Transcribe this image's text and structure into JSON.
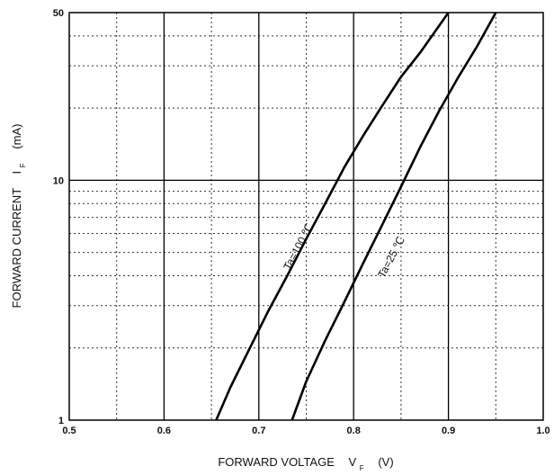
{
  "chart_data": {
    "type": "line",
    "x_scale": "linear",
    "y_scale": "log",
    "xlim": [
      0.5,
      1.0
    ],
    "ylim": [
      1,
      50
    ],
    "x_ticks": [
      0.5,
      0.6,
      0.7,
      0.8,
      0.9,
      1.0
    ],
    "x_tick_labels": [
      "0.5",
      "0.6",
      "0.7",
      "0.8",
      "0.9",
      "1.0"
    ],
    "y_ticks": [
      1,
      10,
      50
    ],
    "y_tick_labels": [
      "1",
      "10",
      "50"
    ],
    "xlabel": {
      "main": "FORWARD VOLTAGE",
      "symbol": "V",
      "subscript": "F",
      "unit": "(V)"
    },
    "ylabel": {
      "main": "FORWARD CURRENT",
      "symbol": "I",
      "subscript": "F",
      "unit": "(mA)"
    },
    "grid": {
      "major": true,
      "minor": true,
      "minor_style": "dotted"
    },
    "series": [
      {
        "name": "Ta=100 ℃",
        "x": [
          0.655,
          0.67,
          0.69,
          0.71,
          0.73,
          0.75,
          0.77,
          0.79,
          0.81,
          0.83,
          0.85,
          0.87,
          0.9
        ],
        "y": [
          1.0,
          1.37,
          1.98,
          2.85,
          4.0,
          5.7,
          8.0,
          11.3,
          15.3,
          20.4,
          27.0,
          34.0,
          50.0
        ]
      },
      {
        "name": "Ta=25 ℃",
        "x": [
          0.735,
          0.75,
          0.77,
          0.79,
          0.81,
          0.83,
          0.85,
          0.87,
          0.89,
          0.91,
          0.93,
          0.95
        ],
        "y": [
          1.0,
          1.45,
          2.15,
          3.1,
          4.5,
          6.5,
          9.4,
          13.7,
          19.4,
          26.7,
          36.0,
          50.0
        ]
      }
    ]
  }
}
